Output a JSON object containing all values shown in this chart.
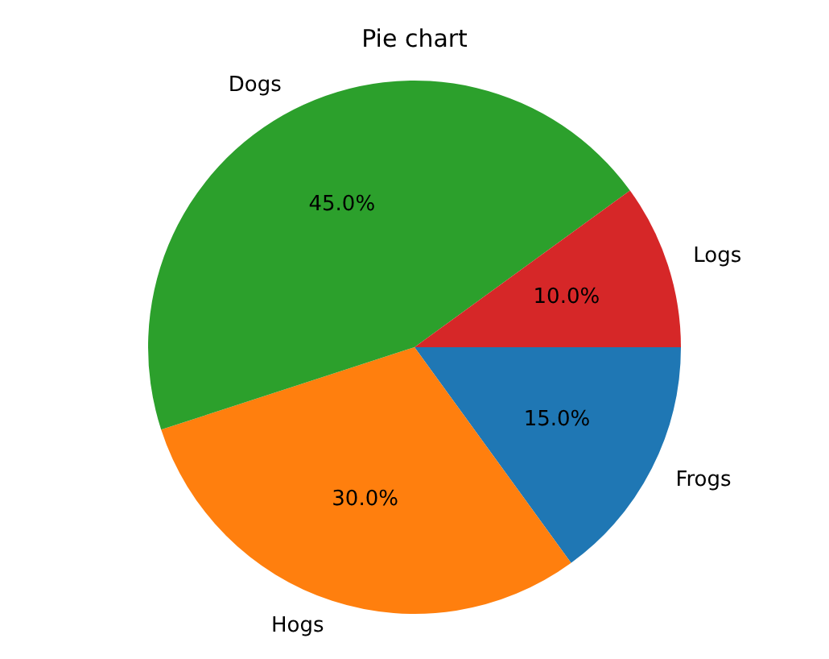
{
  "chart_data": {
    "type": "pie",
    "title": "Pie chart",
    "categories": [
      "Frogs",
      "Hogs",
      "Dogs",
      "Logs"
    ],
    "values": [
      15,
      30,
      45,
      10
    ],
    "colors": [
      "#1f77b4",
      "#ff7f0e",
      "#2ca02c",
      "#d62728"
    ],
    "value_labels": [
      "15.0%",
      "30.0%",
      "45.0%",
      "10.0%"
    ],
    "legend": false
  }
}
